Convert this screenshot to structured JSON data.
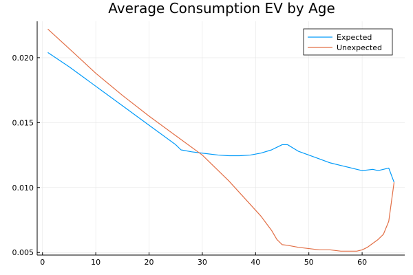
{
  "chart_data": {
    "type": "line",
    "title": "Average Consumption EV by Age",
    "xlabel": "",
    "ylabel": "",
    "xlim": [
      -1,
      68
    ],
    "ylim": [
      0.0048,
      0.0228
    ],
    "xticks": [
      0,
      10,
      20,
      30,
      40,
      50,
      60
    ],
    "yticks": [
      0.005,
      0.01,
      0.015,
      0.02
    ],
    "ytick_labels": [
      "0.005",
      "0.010",
      "0.015",
      "0.020"
    ],
    "grid": true,
    "legend_position": "top-right",
    "series": [
      {
        "name": "Expected",
        "color": "#009af9",
        "x": [
          1,
          5,
          10,
          15,
          20,
          25,
          26,
          28,
          30,
          33,
          35,
          37,
          39,
          41,
          43,
          44,
          45,
          46,
          48,
          50,
          52,
          54,
          56,
          58,
          60,
          62,
          63,
          64,
          65,
          66
        ],
        "y": [
          0.0204,
          0.0193,
          0.0178,
          0.0163,
          0.0148,
          0.0133,
          0.0129,
          0.01275,
          0.01265,
          0.0125,
          0.01245,
          0.01245,
          0.0125,
          0.01265,
          0.0129,
          0.0131,
          0.0133,
          0.0133,
          0.0128,
          0.0125,
          0.0122,
          0.0119,
          0.0117,
          0.0115,
          0.0113,
          0.0114,
          0.0113,
          0.0114,
          0.0115,
          0.0104
        ]
      },
      {
        "name": "Unexpected",
        "color": "#e26f46",
        "x": [
          1,
          5,
          10,
          15,
          20,
          25,
          30,
          33,
          35,
          37,
          39,
          41,
          43,
          44,
          45,
          46,
          48,
          50,
          52,
          54,
          56,
          58,
          59,
          60,
          61,
          62,
          63,
          64,
          65,
          66
        ],
        "y": [
          0.0222,
          0.0207,
          0.0188,
          0.0171,
          0.0155,
          0.014,
          0.0125,
          0.0113,
          0.0105,
          0.0096,
          0.0087,
          0.0078,
          0.0067,
          0.006,
          0.0056,
          0.00555,
          0.0054,
          0.0053,
          0.0052,
          0.0052,
          0.0051,
          0.0051,
          0.0051,
          0.0052,
          0.0054,
          0.0057,
          0.006,
          0.0064,
          0.0074,
          0.0104
        ]
      }
    ]
  }
}
